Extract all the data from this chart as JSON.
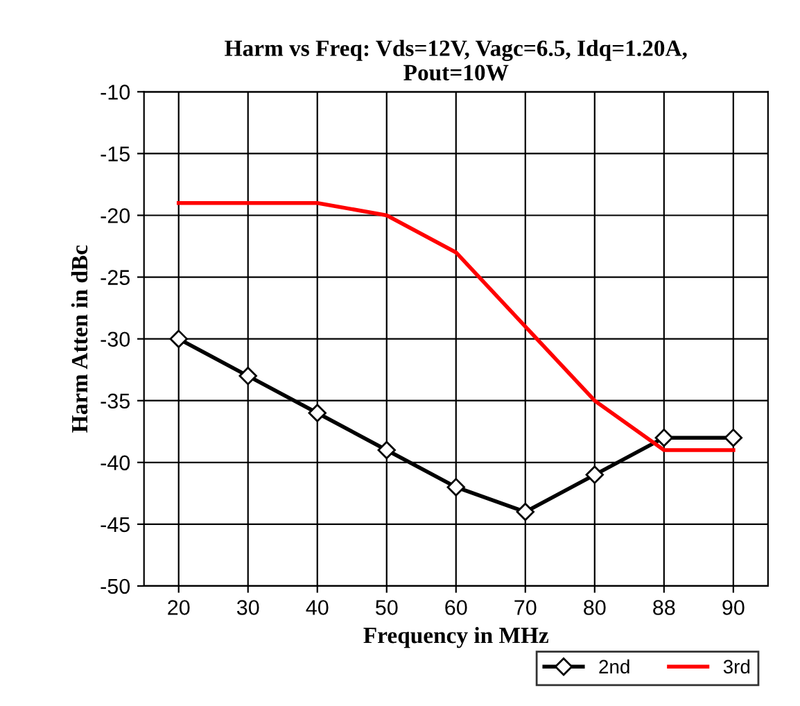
{
  "chart_data": {
    "type": "line",
    "title": "Harm vs Freq: Vds=12V, Vagc=6.5, Idq=1.20A,\nPout=10W",
    "xlabel": "Frequency in MHz",
    "ylabel": "Harm Atten in dBc",
    "categories": [
      "20",
      "30",
      "40",
      "50",
      "60",
      "70",
      "80",
      "88",
      "90"
    ],
    "series": [
      {
        "name": "2nd",
        "color": "#000000",
        "marker": "diamond",
        "values": [
          -30,
          -33,
          -36,
          -39,
          -42,
          -44,
          -41,
          -38,
          -38
        ]
      },
      {
        "name": "3rd",
        "color": "#ff0000",
        "marker": "none",
        "values": [
          -19,
          -19,
          -19,
          -20,
          -23,
          -29,
          -35,
          -39,
          -39
        ]
      }
    ],
    "ylim": [
      -50,
      -10
    ],
    "yticks": [
      -50,
      -45,
      -40,
      -35,
      -30,
      -25,
      -20,
      -15,
      -10
    ],
    "grid": true,
    "legend": "bottom right",
    "line_style": "solid"
  }
}
